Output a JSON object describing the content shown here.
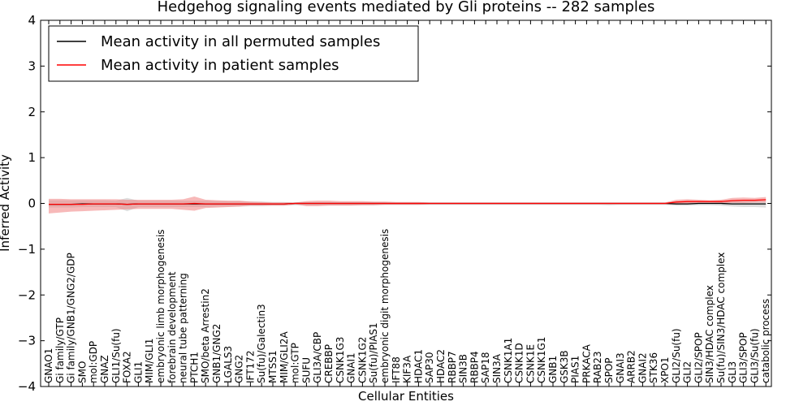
{
  "chart_data": {
    "type": "line",
    "title": "Hedgehog signaling events mediated by Gli proteins -- 282 samples",
    "xlabel": "Cellular Entities",
    "ylabel": "Inferred Activity",
    "ylim": [
      -4,
      4
    ],
    "yticks": [
      4,
      3,
      2,
      1,
      0,
      -1,
      -2,
      -3,
      -4
    ],
    "ytick_labels": [
      "4",
      "3",
      "2",
      "1",
      "0",
      "−1",
      "−2",
      "−3",
      "−4"
    ],
    "legend_position": "top-left",
    "categories": [
      "GNAO1",
      "Gi family/GTP",
      "Gi family/GNB1/GNG2/GDP",
      "SMO",
      "mol:GDP",
      "GNAZ",
      "GLI1/Su(fu)",
      "FOXA2",
      "GLI1",
      "MIM/GLI1",
      "embryonic limb morphogenesis",
      "forebrain development",
      "neural tube patterning",
      "PTCH1",
      "SMO/beta Arrestin2",
      "GNB1/GNG2",
      "LGALS3",
      "GNG2",
      "IFT172",
      "Su(fu)/Galectin3",
      "MTSS1",
      "MIM/GLI2A",
      "mol:GTP",
      "SUFU",
      "GLI3A/CBP",
      "CREBBP",
      "CSNK1G3",
      "GNAI1",
      "CSNK1G2",
      "Su(fu)/PIAS1",
      "embryonic digit morphogenesis",
      "IFT88",
      "KIF3A",
      "HDAC1",
      "SAP30",
      "HDAC2",
      "RBBP7",
      "SIN3B",
      "RBBP4",
      "SAP18",
      "SIN3A",
      "CSNK1A1",
      "CSNK1D",
      "CSNK1E",
      "CSNK1G1",
      "GNB1",
      "GSK3B",
      "PIAS1",
      "PRKACA",
      "RAB23",
      "SPOP",
      "GNAI3",
      "ARRB2",
      "GNAI2",
      "STK36",
      "XPO1",
      "GLI2/Su(fu)",
      "GLI2",
      "GLI2/SPOP",
      "SIN3/HDAC complex",
      "Su(fu)/SIN3/HDAC complex",
      "GLI3",
      "GLI3/SPOP",
      "GLI3/Su(fu)",
      "catabolic process"
    ],
    "series": [
      {
        "name": "Mean activity in all permuted samples",
        "color": "#000000",
        "band_color": "#c8c8c8",
        "values": [
          -0.02,
          -0.02,
          -0.02,
          -0.01,
          -0.01,
          -0.01,
          -0.01,
          -0.02,
          -0.01,
          -0.01,
          -0.01,
          -0.01,
          -0.01,
          -0.01,
          -0.01,
          -0.01,
          -0.01,
          -0.01,
          -0.01,
          -0.01,
          -0.01,
          -0.01,
          0,
          0,
          0,
          0,
          0,
          0,
          0,
          0,
          0,
          0,
          0,
          0,
          0,
          0,
          0,
          0,
          0,
          0,
          0,
          0,
          0,
          0,
          0,
          0,
          0,
          0,
          0,
          0,
          0,
          0,
          0,
          0,
          0,
          0,
          -0.01,
          -0.01,
          0,
          0,
          0,
          -0.01,
          -0.01,
          -0.01,
          -0.01
        ],
        "band_upper": [
          0.07,
          0.07,
          0.07,
          0.07,
          0.07,
          0.07,
          0.06,
          0.12,
          0.06,
          0.06,
          0.06,
          0.06,
          0.06,
          0.06,
          0.06,
          0.05,
          0.05,
          0.05,
          0.04,
          0.04,
          0.03,
          0.03,
          0.02,
          0.02,
          0.02,
          0.02,
          0.02,
          0.02,
          0.02,
          0.02,
          0.02,
          0.01,
          0.01,
          0.01,
          0.01,
          0.01,
          0.01,
          0.01,
          0.01,
          0.01,
          0.01,
          0.01,
          0.01,
          0.01,
          0.01,
          0.01,
          0.01,
          0.01,
          0.01,
          0.01,
          0.01,
          0.01,
          0.01,
          0.01,
          0.01,
          0.01,
          0.03,
          0.03,
          0.02,
          0.02,
          0.03,
          0.05,
          0.05,
          0.05,
          0.05
        ],
        "band_lower": [
          -0.09,
          -0.09,
          -0.09,
          -0.08,
          -0.08,
          -0.08,
          -0.08,
          -0.17,
          -0.08,
          -0.08,
          -0.08,
          -0.08,
          -0.08,
          -0.08,
          -0.08,
          -0.07,
          -0.07,
          -0.07,
          -0.06,
          -0.06,
          -0.05,
          -0.05,
          -0.04,
          -0.04,
          -0.04,
          -0.04,
          -0.04,
          -0.04,
          -0.04,
          -0.04,
          -0.03,
          -0.03,
          -0.03,
          -0.03,
          -0.03,
          -0.03,
          -0.03,
          -0.03,
          -0.03,
          -0.03,
          -0.03,
          -0.03,
          -0.03,
          -0.03,
          -0.03,
          -0.03,
          -0.03,
          -0.03,
          -0.03,
          -0.03,
          -0.04,
          -0.03,
          -0.03,
          -0.03,
          -0.03,
          -0.03,
          -0.05,
          -0.05,
          -0.04,
          -0.04,
          -0.05,
          -0.07,
          -0.08,
          -0.08,
          -0.09
        ]
      },
      {
        "name": "Mean activity in patient samples",
        "color": "#ff0000",
        "band_color": "#f08080",
        "values": [
          -0.02,
          -0.02,
          -0.02,
          -0.02,
          -0.01,
          -0.01,
          -0.01,
          -0.02,
          -0.01,
          -0.01,
          -0.01,
          -0.01,
          -0.01,
          0,
          -0.01,
          -0.01,
          -0.01,
          -0.01,
          -0.01,
          -0.01,
          -0.01,
          -0.01,
          0,
          0,
          0,
          0,
          0,
          0,
          0,
          0,
          0,
          0,
          0,
          0,
          0,
          0,
          0,
          0,
          0,
          0,
          0,
          0,
          0,
          0,
          0,
          0,
          0,
          0,
          0,
          0,
          0,
          0,
          0,
          0,
          0,
          0,
          0.03,
          0.04,
          0.04,
          0.04,
          0.04,
          0.06,
          0.07,
          0.07,
          0.08
        ],
        "band_upper": [
          0.1,
          0.1,
          0.09,
          0.09,
          0.09,
          0.09,
          0.09,
          0.08,
          0.08,
          0.08,
          0.08,
          0.08,
          0.09,
          0.15,
          0.08,
          0.07,
          0.06,
          0.06,
          0.04,
          0.03,
          0.02,
          0.02,
          0.02,
          0.05,
          0.06,
          0.06,
          0.05,
          0.05,
          0.05,
          0.04,
          0.04,
          0.03,
          0.03,
          0.03,
          0.02,
          0.02,
          0.02,
          0.02,
          0.02,
          0.02,
          0.02,
          0.02,
          0.02,
          0.02,
          0.02,
          0.02,
          0.02,
          0.02,
          0.02,
          0.02,
          0.02,
          0.02,
          0.02,
          0.02,
          0.02,
          0.02,
          0.08,
          0.09,
          0.08,
          0.07,
          0.08,
          0.12,
          0.13,
          0.12,
          0.14
        ],
        "band_lower": [
          -0.22,
          -0.2,
          -0.18,
          -0.17,
          -0.16,
          -0.15,
          -0.14,
          -0.13,
          -0.12,
          -0.12,
          -0.12,
          -0.12,
          -0.14,
          -0.16,
          -0.1,
          -0.09,
          -0.08,
          -0.07,
          -0.05,
          -0.05,
          -0.05,
          -0.05,
          -0.02,
          -0.06,
          -0.06,
          -0.05,
          -0.05,
          -0.05,
          -0.04,
          -0.04,
          -0.03,
          -0.03,
          -0.03,
          -0.03,
          -0.02,
          -0.02,
          -0.02,
          -0.02,
          -0.02,
          -0.02,
          -0.02,
          -0.02,
          -0.02,
          -0.02,
          -0.02,
          -0.02,
          -0.02,
          -0.02,
          -0.02,
          -0.02,
          -0.02,
          -0.02,
          -0.02,
          -0.02,
          -0.02,
          -0.02,
          -0.02,
          -0.01,
          0,
          0,
          0,
          0.01,
          0.01,
          0.02,
          0.02
        ]
      }
    ]
  }
}
